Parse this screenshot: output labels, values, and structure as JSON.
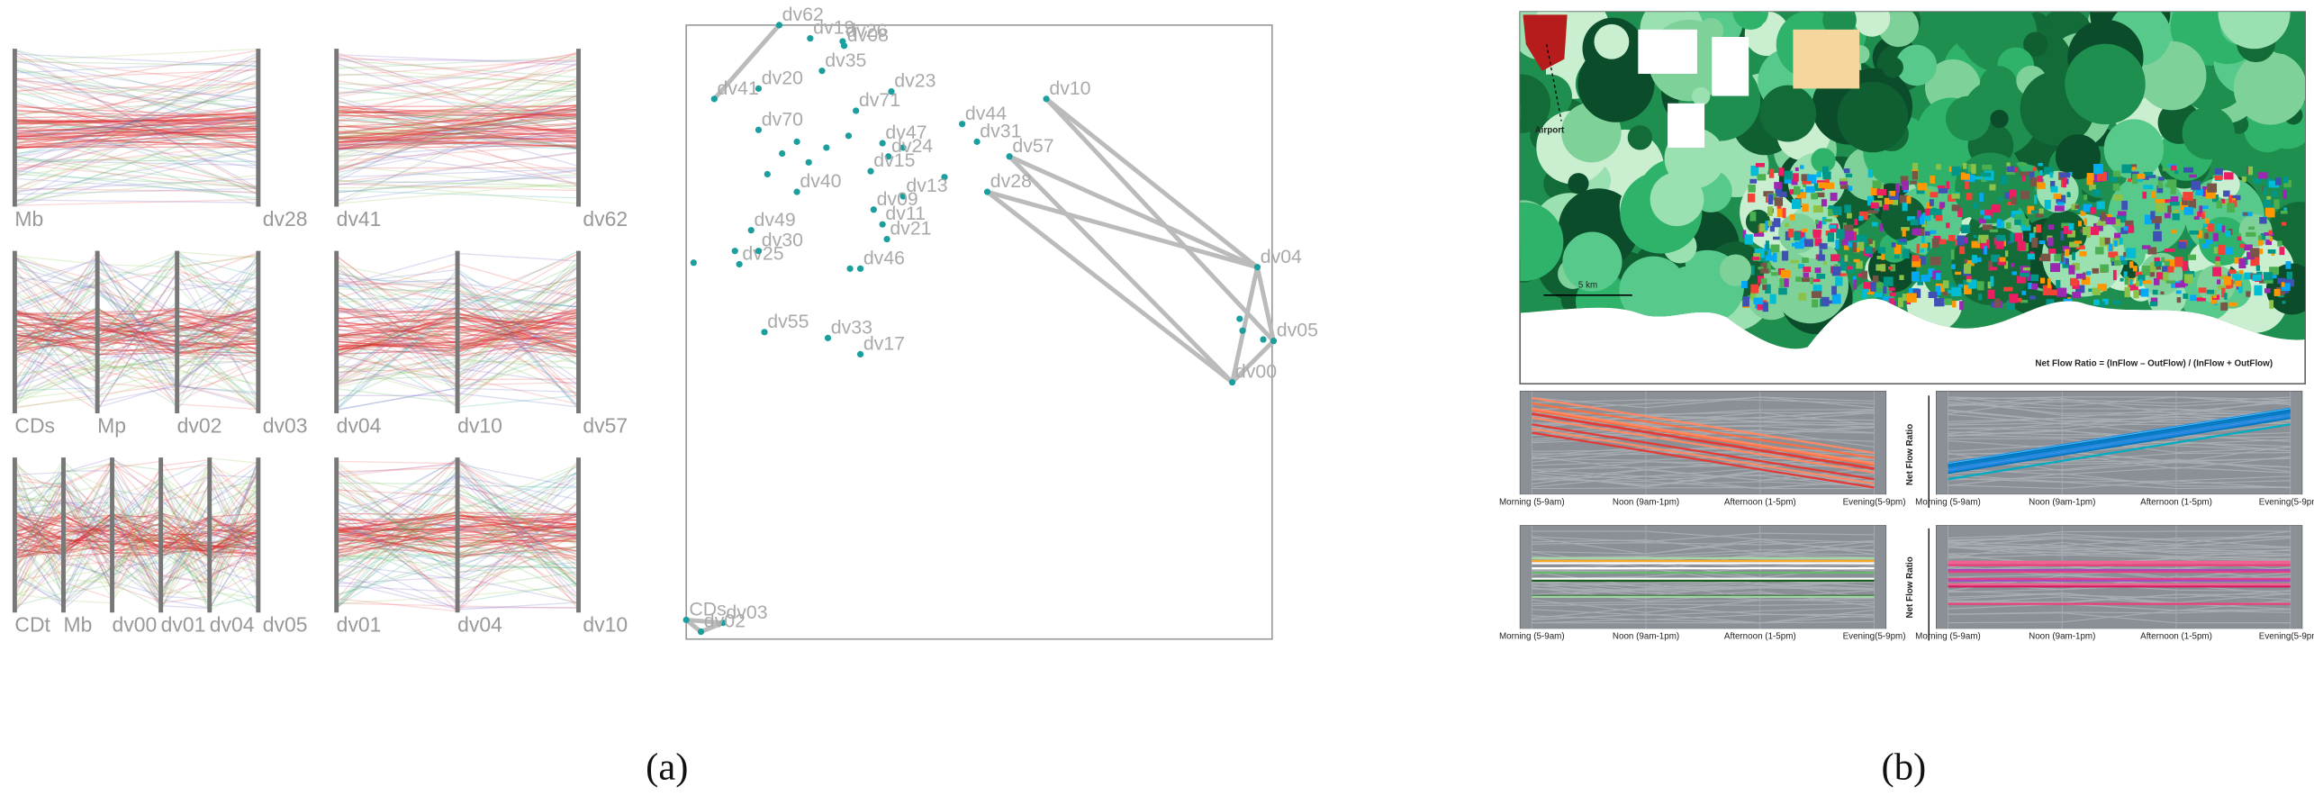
{
  "panels": [
    {
      "caption": "(a)",
      "parallel_plots": [
        {
          "axes": [
            "Mb",
            "dv28"
          ]
        },
        {
          "axes": [
            "dv41",
            "dv62"
          ]
        },
        {
          "axes": [
            "CDs",
            "Mp",
            "dv02",
            "dv03"
          ]
        },
        {
          "axes": [
            "dv04",
            "dv10",
            "dv57"
          ]
        },
        {
          "axes": [
            "CDt",
            "Mb",
            "dv00",
            "dv01",
            "dv04",
            "dv05"
          ]
        },
        {
          "axes": [
            "dv01",
            "dv04",
            "dv10"
          ]
        }
      ],
      "graph": {
        "nodes": [
          "dv62",
          "dv19",
          "dv26",
          "dv08",
          "dv35",
          "dv20",
          "dv41",
          "dv23",
          "dv71",
          "dv70",
          "dv47",
          "dv24",
          "dv44",
          "dv31",
          "dv10",
          "dv57",
          "dv15",
          "dv40",
          "dv13",
          "dv28",
          "dv09",
          "dv21",
          "dv11",
          "dv49",
          "dv25",
          "dv30",
          "dv46",
          "dv55",
          "dv33",
          "dv17",
          "dv04",
          "dv05",
          "dv00",
          "CDs",
          "dv03",
          "dv02"
        ]
      }
    },
    {
      "caption": "(b)",
      "map": {
        "airport": "Airport",
        "scale": "5 km",
        "formula": "Net Flow Ratio = (InFlow – OutFlow) / (InFlow + OutFlow)"
      },
      "flow_charts": {
        "x_labels": [
          "Morning (5-9am)",
          "Noon (9am-1pm)",
          "Afternoon (1-5pm)",
          "Evening(5-9pm)"
        ],
        "y_label": "Net Flow Ratio"
      }
    }
  ]
}
